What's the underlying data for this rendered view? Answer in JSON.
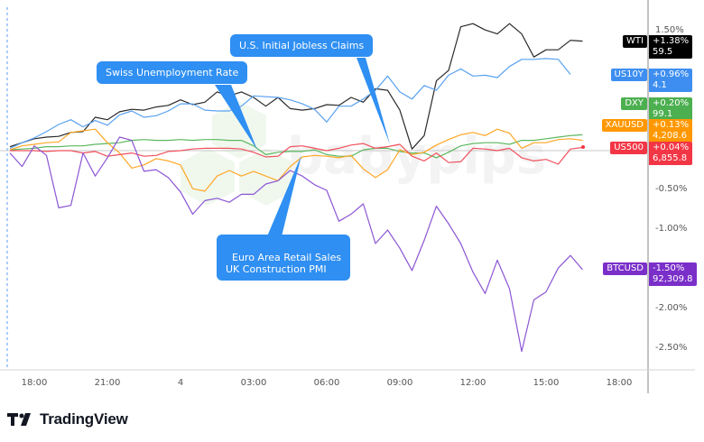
{
  "brand": {
    "logo_text": "TradingView",
    "watermark": "babypips"
  },
  "chart_data": {
    "type": "line",
    "y_unit": "%",
    "start_time": "17:00",
    "interval_minutes": 30,
    "x_ticks": [
      "18:00",
      "21:00",
      "4",
      "03:00",
      "06:00",
      "09:00",
      "12:00",
      "15:00",
      "18:00"
    ],
    "y_ticks": [
      "1.50%",
      "-0.50%",
      "-1.00%",
      "-2.00%",
      "-2.50%"
    ],
    "y_tick_values": [
      1.5,
      -0.5,
      -1.0,
      -2.0,
      -2.5
    ],
    "ylim": [
      -2.85,
      1.9
    ],
    "grid": false,
    "zero_line": true,
    "series": [
      {
        "name": "WTI",
        "change": "+1.38%",
        "price": "59.5",
        "color": "#000000",
        "line_color": "#2a2a2a",
        "values": [
          0.05,
          0.1,
          0.15,
          0.17,
          0.18,
          0.23,
          0.24,
          0.42,
          0.39,
          0.49,
          0.52,
          0.51,
          0.55,
          0.57,
          0.64,
          0.58,
          0.61,
          0.74,
          0.69,
          0.74,
          0.67,
          0.56,
          0.67,
          0.53,
          0.51,
          0.53,
          0.58,
          0.57,
          0.67,
          0.61,
          0.78,
          0.76,
          0.51,
          0.02,
          0.19,
          0.88,
          1.01,
          1.56,
          1.6,
          1.52,
          1.47,
          1.6,
          1.47,
          1.18,
          1.27,
          1.27,
          1.39,
          1.38
        ]
      },
      {
        "name": "US10Y",
        "change": "+0.96%",
        "price": "4.1",
        "color": "#3d8ef0",
        "line_color": "#5aa2f0",
        "values": [
          0.03,
          0.1,
          0.16,
          0.24,
          0.33,
          0.39,
          0.3,
          0.38,
          0.32,
          0.45,
          0.5,
          0.42,
          0.44,
          0.5,
          0.59,
          0.59,
          0.51,
          0.5,
          0.5,
          0.56,
          0.69,
          0.68,
          0.67,
          0.64,
          0.59,
          0.52,
          0.36,
          0.56,
          0.56,
          0.65,
          0.76,
          0.94,
          0.74,
          0.65,
          0.82,
          0.76,
          0.95,
          1.03,
          0.94,
          0.95,
          0.92,
          1.06,
          1.15,
          1.15,
          1.16,
          1.15,
          0.96
        ]
      },
      {
        "name": "DXY",
        "change": "+0.20%",
        "price": "99.1",
        "color": "#4caf50",
        "line_color": "#5cb85f",
        "values": [
          0.01,
          0.02,
          0.03,
          0.05,
          0.05,
          0.06,
          0.06,
          0.08,
          0.09,
          0.1,
          0.13,
          0.14,
          0.13,
          0.13,
          0.14,
          0.13,
          0.14,
          0.14,
          0.13,
          0.13,
          0.06,
          -0.05,
          -0.02,
          -0.01,
          -0.01,
          0.01,
          -0.05,
          -0.07,
          -0.07,
          0.01,
          0.03,
          0.03,
          -0.01,
          -0.03,
          -0.03,
          -0.09,
          -0.02,
          0.06,
          0.09,
          0.1,
          0.1,
          0.08,
          0.13,
          0.13,
          0.15,
          0.17,
          0.19,
          0.2
        ]
      },
      {
        "name": "XAUUSD",
        "change": "+0.13%",
        "price": "4,208.6",
        "color": "#ff9800",
        "line_color": "#ffa726",
        "values": [
          0.01,
          0.06,
          0.08,
          0.1,
          0.11,
          0.23,
          0.25,
          0.27,
          0.1,
          -0.03,
          -0.22,
          -0.18,
          -0.1,
          -0.13,
          -0.18,
          -0.48,
          -0.51,
          -0.32,
          -0.25,
          -0.32,
          -0.26,
          -0.32,
          -0.38,
          -0.2,
          -0.08,
          -0.06,
          -0.07,
          -0.09,
          -0.06,
          -0.23,
          -0.34,
          -0.24,
          0.01,
          -0.05,
          -0.02,
          0.07,
          0.14,
          0.2,
          0.23,
          0.19,
          0.27,
          0.22,
          0.03,
          0.1,
          0.1,
          0.14,
          0.15,
          0.13
        ]
      },
      {
        "name": "US500",
        "change": "+0.04%",
        "price": "6,855.8",
        "color": "#f23645",
        "line_color": "#f0505c",
        "values": [
          0,
          0,
          0,
          -0.01,
          0,
          0,
          -0.03,
          -0.01,
          -0.07,
          -0.05,
          -0.03,
          -0.07,
          -0.06,
          -0.01,
          0,
          0.02,
          0.03,
          0.03,
          0.03,
          0.02,
          -0.02,
          -0.08,
          -0.07,
          0.05,
          0.06,
          0.03,
          0,
          0.03,
          0.07,
          0.09,
          0.03,
          0.05,
          0.08,
          -0.07,
          -0.13,
          -0.03,
          -0.15,
          -0.14,
          0.03,
          0.02,
          0,
          0.03,
          -0.09,
          -0.13,
          -0.11,
          -0.17,
          0.02,
          0.04
        ]
      },
      {
        "name": "BTCUSD",
        "change": "-1.50%",
        "price": "92,309.8",
        "color": "#7b2fc9",
        "line_color": "#8c55d4",
        "values": [
          -0.03,
          -0.2,
          0.06,
          -0.06,
          -0.72,
          -0.69,
          -0.03,
          -0.32,
          -0.09,
          0.17,
          0.13,
          -0.26,
          -0.24,
          -0.34,
          -0.52,
          -0.8,
          -0.63,
          -0.6,
          -0.65,
          -0.55,
          -0.55,
          -0.42,
          -0.38,
          -0.25,
          -0.32,
          -0.43,
          -0.5,
          -0.89,
          -0.8,
          -0.67,
          -1.17,
          -1.0,
          -1.23,
          -1.51,
          -1.13,
          -0.7,
          -0.92,
          -1.17,
          -1.53,
          -1.8,
          -1.38,
          -1.74,
          -2.53,
          -1.88,
          -1.78,
          -1.48,
          -1.32,
          -1.5
        ]
      }
    ],
    "annotations": [
      {
        "text": "Swiss Unemployment Rate",
        "time": "03:00"
      },
      {
        "text": "U.S. Initial Jobless Claims",
        "time": "08:30"
      },
      {
        "text": "Euro Area Retail Sales\nUK Construction PMI",
        "time": "05:00"
      }
    ]
  }
}
